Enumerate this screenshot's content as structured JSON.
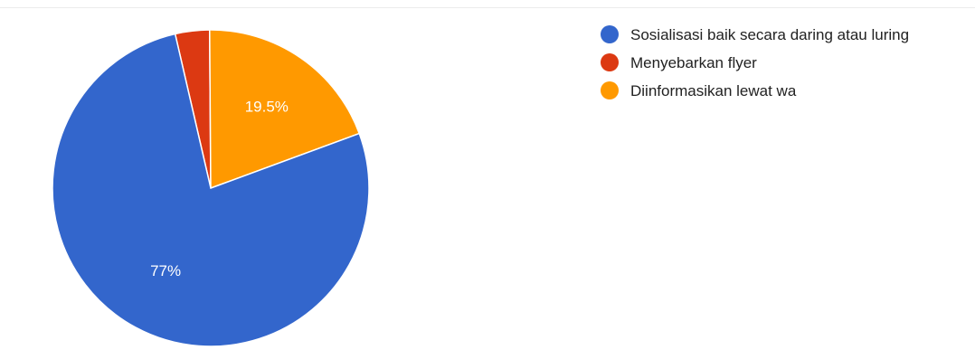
{
  "chart_data": {
    "type": "pie",
    "title": "",
    "legend_position": "right",
    "slices": [
      {
        "label": "Sosialisasi baik secara daring atau luring",
        "value": 77,
        "display": "77%",
        "color": "#3366cc"
      },
      {
        "label": "Menyebarkan flyer",
        "value": 3.5,
        "display": "",
        "color": "#dc3912"
      },
      {
        "label": "Diinformasikan lewat wa",
        "value": 19.5,
        "display": "19.5%",
        "color": "#ff9900"
      }
    ]
  }
}
